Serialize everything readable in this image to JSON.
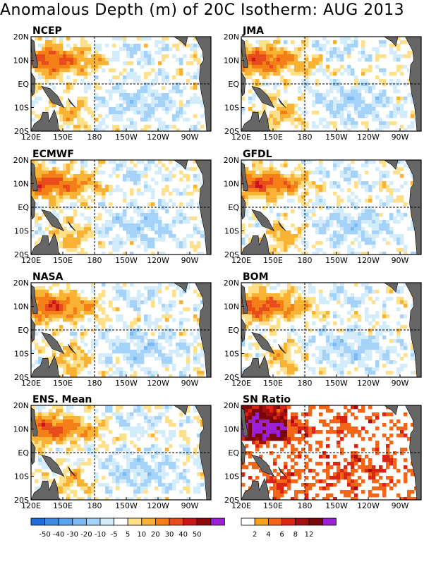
{
  "title": "Anomalous Depth (m) of 20C Isotherm: AUG 2013",
  "panels": [
    {
      "id": "ncep",
      "label": "NCEP"
    },
    {
      "id": "jma",
      "label": "JMA"
    },
    {
      "id": "ecmwf",
      "label": "ECMWF"
    },
    {
      "id": "gfdl",
      "label": "GFDL"
    },
    {
      "id": "nasa",
      "label": "NASA"
    },
    {
      "id": "bom",
      "label": "BOM"
    },
    {
      "id": "ens",
      "label": "ENS. Mean"
    },
    {
      "id": "sn",
      "label": "SN Ratio"
    }
  ],
  "axes": {
    "lon_ticks": [
      "120E",
      "150E",
      "180",
      "150W",
      "120W",
      "90W"
    ],
    "lat_ticks": [
      "20N",
      "10N",
      "EQ",
      "10S",
      "20S"
    ]
  },
  "colorbars": {
    "anomaly": {
      "labels": [
        "-50",
        "-40",
        "-30",
        "-20",
        "-10",
        "-5",
        "5",
        "10",
        "20",
        "30",
        "40",
        "50"
      ],
      "colors": [
        "#1e6fd9",
        "#3c8ce8",
        "#5aa3ef",
        "#7bbaf3",
        "#a5d2f8",
        "#d2ecfb",
        "#ffffff",
        "#ffe08a",
        "#f9b233",
        "#f57f17",
        "#e84c1c",
        "#c8161b",
        "#8e0a0a",
        "#9b1fd6"
      ]
    },
    "sn": {
      "labels": [
        "2",
        "4",
        "6",
        "8",
        "12"
      ],
      "colors": [
        "#ffffff",
        "#f9a11b",
        "#f2661a",
        "#db2514",
        "#a30f0f",
        "#7a0808",
        "#9b1fd6"
      ]
    }
  }
}
